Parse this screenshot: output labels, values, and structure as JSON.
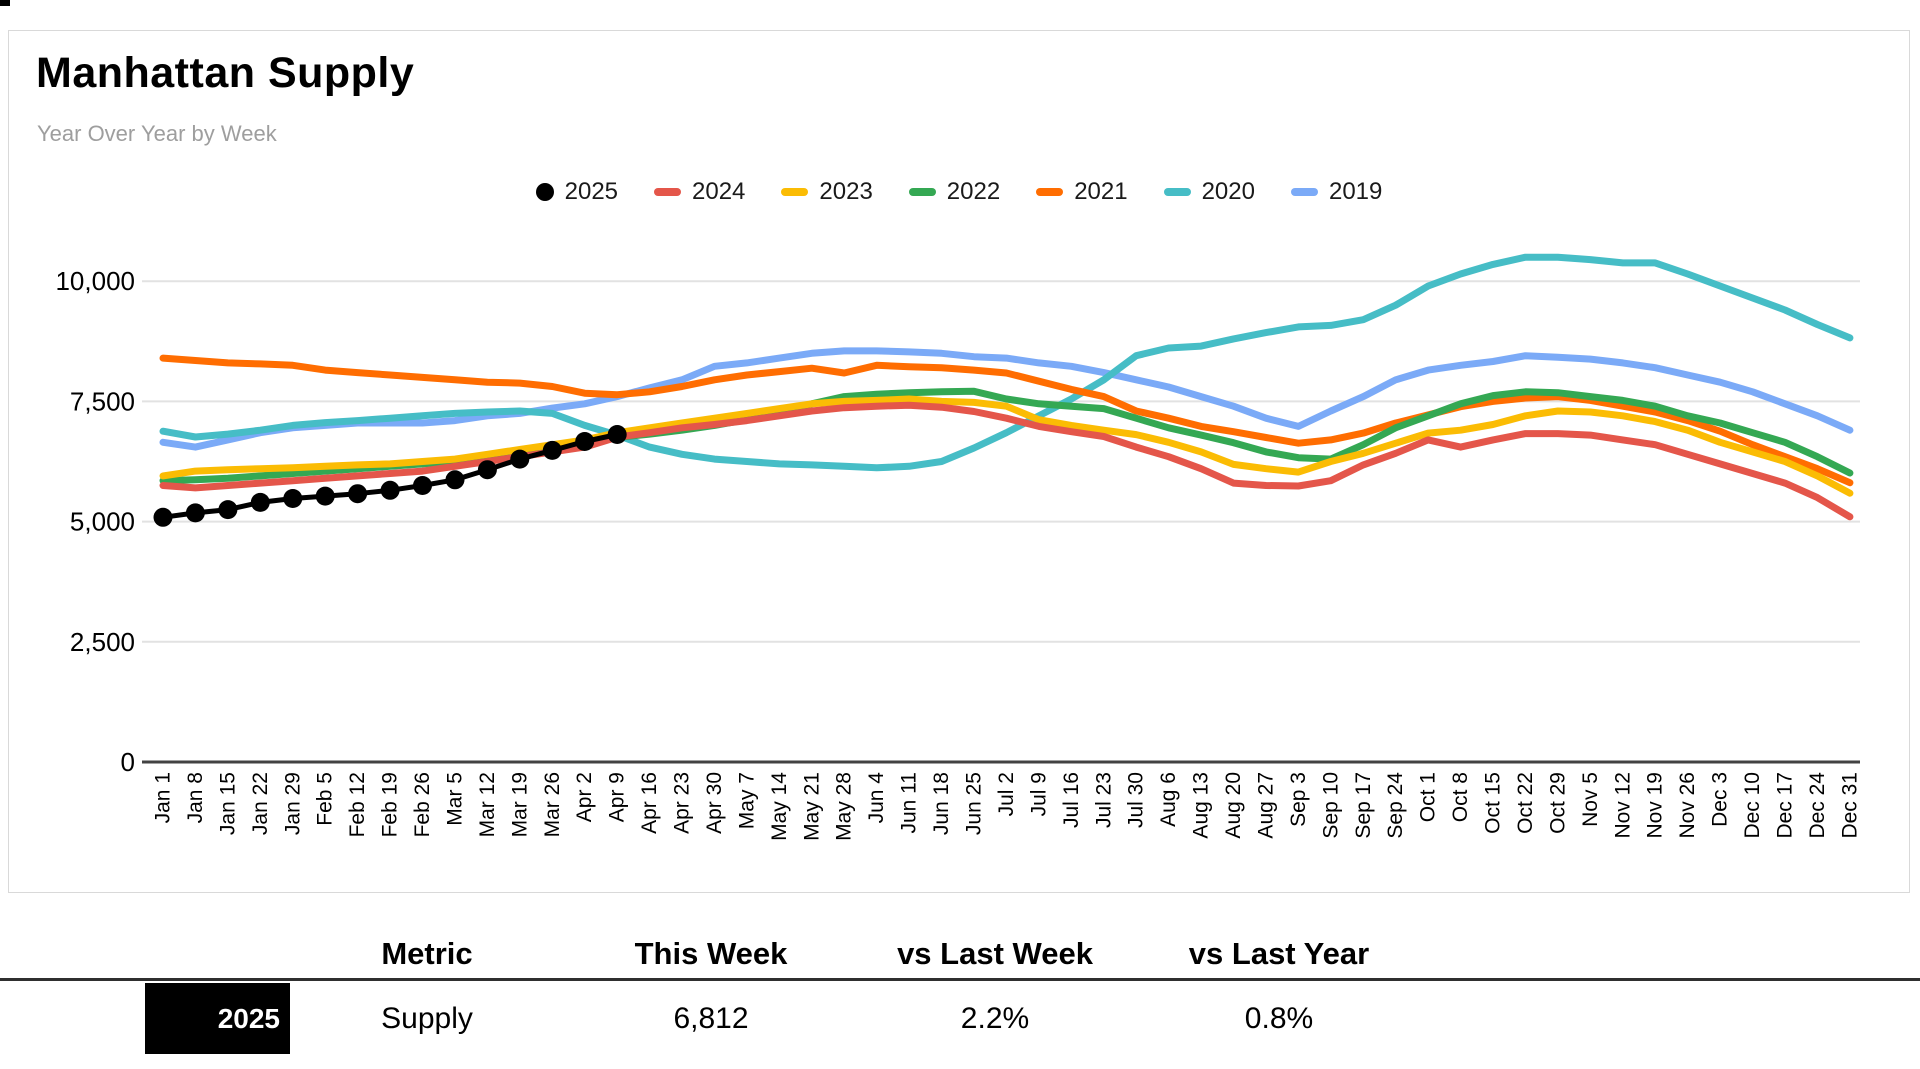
{
  "chart_data": {
    "type": "line",
    "title": "Manhattan Supply",
    "subtitle": "Year Over Year by Week",
    "legend_position": "top",
    "grid": true,
    "ylim": [
      0,
      10000
    ],
    "yticks": [
      {
        "value": 0,
        "label": "0"
      },
      {
        "value": 2500,
        "label": "2,500"
      },
      {
        "value": 5000,
        "label": "5,000"
      },
      {
        "value": 7500,
        "label": "7,500"
      },
      {
        "value": 10000,
        "label": "10,000"
      }
    ],
    "categories": [
      "Jan 1",
      "Jan 8",
      "Jan 15",
      "Jan 22",
      "Jan 29",
      "Feb 5",
      "Feb 12",
      "Feb 19",
      "Feb 26",
      "Mar 5",
      "Mar 12",
      "Mar 19",
      "Mar 26",
      "Apr 2",
      "Apr 9",
      "Apr 16",
      "Apr 23",
      "Apr 30",
      "May 7",
      "May 14",
      "May 21",
      "May 28",
      "Jun 4",
      "Jun 11",
      "Jun 18",
      "Jun 25",
      "Jul 2",
      "Jul 9",
      "Jul 16",
      "Jul 23",
      "Jul 30",
      "Aug 6",
      "Aug 13",
      "Aug 20",
      "Aug 27",
      "Sep 3",
      "Sep 10",
      "Sep 17",
      "Sep 24",
      "Oct 1",
      "Oct 8",
      "Oct 15",
      "Oct 22",
      "Oct 29",
      "Nov 5",
      "Nov 12",
      "Nov 19",
      "Nov 26",
      "Dec 3",
      "Dec 10",
      "Dec 17",
      "Dec 24",
      "Dec 31"
    ],
    "series": [
      {
        "name": "2025",
        "color": "#000000",
        "marker": "circle",
        "values": [
          5090,
          5180,
          5250,
          5400,
          5480,
          5530,
          5580,
          5650,
          5750,
          5870,
          6080,
          6300,
          6480,
          6666,
          6812
        ]
      },
      {
        "name": "2024",
        "color": "#e4564a",
        "values": [
          5750,
          5700,
          5750,
          5800,
          5850,
          5900,
          5950,
          6000,
          6050,
          6150,
          6250,
          6350,
          6450,
          6550,
          6758,
          6850,
          6950,
          7020,
          7100,
          7200,
          7300,
          7370,
          7400,
          7420,
          7380,
          7290,
          7150,
          6980,
          6870,
          6770,
          6550,
          6350,
          6100,
          5800,
          5750,
          5740,
          5850,
          6180,
          6420,
          6700,
          6550,
          6700,
          6830,
          6830,
          6800,
          6700,
          6600,
          6400,
          6200,
          6000,
          5800,
          5500,
          5100
        ]
      },
      {
        "name": "2023",
        "color": "#fbbc04",
        "values": [
          5950,
          6050,
          6080,
          6100,
          6120,
          6150,
          6180,
          6200,
          6250,
          6300,
          6400,
          6500,
          6600,
          6700,
          6850,
          6950,
          7050,
          7150,
          7250,
          7350,
          7450,
          7500,
          7520,
          7550,
          7500,
          7480,
          7400,
          7120,
          7000,
          6900,
          6810,
          6650,
          6450,
          6190,
          6100,
          6030,
          6250,
          6420,
          6630,
          6840,
          6900,
          7020,
          7200,
          7300,
          7280,
          7200,
          7080,
          6900,
          6650,
          6450,
          6250,
          5950,
          5590
        ]
      },
      {
        "name": "2022",
        "color": "#34a853",
        "values": [
          5850,
          5870,
          5900,
          5950,
          6000,
          6050,
          6100,
          6150,
          6200,
          6250,
          6350,
          6450,
          6550,
          6650,
          6750,
          6820,
          6900,
          7000,
          7120,
          7250,
          7450,
          7600,
          7650,
          7680,
          7700,
          7710,
          7550,
          7450,
          7400,
          7350,
          7150,
          6950,
          6800,
          6640,
          6450,
          6330,
          6300,
          6600,
          6950,
          7200,
          7450,
          7620,
          7700,
          7680,
          7600,
          7520,
          7400,
          7200,
          7050,
          6850,
          6650,
          6350,
          6010
        ]
      },
      {
        "name": "2021",
        "color": "#ff6d01",
        "values": [
          8400,
          8350,
          8300,
          8280,
          8250,
          8150,
          8100,
          8050,
          8000,
          7950,
          7900,
          7880,
          7810,
          7670,
          7640,
          7700,
          7810,
          7950,
          8050,
          8120,
          8190,
          8090,
          8250,
          8220,
          8200,
          8150,
          8090,
          7920,
          7750,
          7600,
          7300,
          7150,
          6980,
          6870,
          6750,
          6630,
          6700,
          6840,
          7050,
          7220,
          7390,
          7500,
          7570,
          7600,
          7520,
          7400,
          7280,
          7100,
          6880,
          6600,
          6350,
          6100,
          5810
        ]
      },
      {
        "name": "2020",
        "color": "#46bdc6",
        "values": [
          6880,
          6760,
          6820,
          6900,
          7000,
          7060,
          7100,
          7150,
          7200,
          7250,
          7280,
          7300,
          7250,
          7000,
          6800,
          6550,
          6400,
          6300,
          6250,
          6200,
          6180,
          6150,
          6120,
          6150,
          6250,
          6530,
          6850,
          7200,
          7550,
          7950,
          8450,
          8610,
          8650,
          8800,
          8930,
          9050,
          9080,
          9200,
          9500,
          9900,
          10150,
          10350,
          10500,
          10500,
          10450,
          10380,
          10380,
          10150,
          9900,
          9650,
          9400,
          9100,
          8820
        ]
      },
      {
        "name": "2019",
        "color": "#7baaf7",
        "values": [
          6650,
          6550,
          6700,
          6850,
          6950,
          7000,
          7050,
          7050,
          7050,
          7100,
          7200,
          7250,
          7360,
          7450,
          7600,
          7780,
          7950,
          8230,
          8300,
          8400,
          8500,
          8550,
          8550,
          8530,
          8500,
          8430,
          8400,
          8300,
          8230,
          8100,
          7950,
          7800,
          7600,
          7400,
          7150,
          6980,
          7300,
          7600,
          7950,
          8150,
          8250,
          8330,
          8450,
          8420,
          8380,
          8300,
          8200,
          8050,
          7900,
          7700,
          7450,
          7200,
          6900
        ]
      }
    ]
  },
  "table": {
    "headers": {
      "metric": "Metric",
      "this_week": "This Week",
      "vs_last_week": "vs Last Week",
      "vs_last_year": "vs Last Year"
    },
    "row": {
      "year": "2025",
      "metric": "Supply",
      "this_week": "6,812",
      "vs_last_week": "2.2%",
      "vs_last_year": "0.8%"
    }
  }
}
